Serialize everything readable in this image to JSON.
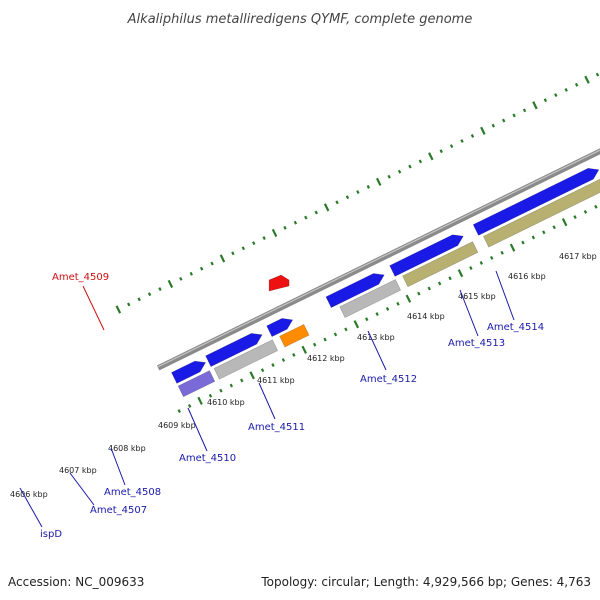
{
  "title": "Alkaliphilus metalliredigens QYMF, complete genome",
  "footer": {
    "accession": "Accession: NC_009633",
    "topology": "Topology: circular; Length: 4,929,566 bp; Genes: 4,763"
  },
  "colors": {
    "backbone": "#8a8a8a",
    "ticks": "#2a7a2a",
    "label_default": "#1a1aaa",
    "label_highlight": "#cc1111",
    "gene_blue": "#1a1ae6",
    "gene_khaki": "#b8b070",
    "gene_gray": "#b8b8b8",
    "gene_orange": "#ff8c00",
    "gene_purple": "#7a6ad8",
    "gene_steelblue": "#4a80b8",
    "gene_darkgray": "#666666",
    "gene_pink": "#e88a8a",
    "gene_red": "#ee1111"
  },
  "tick_labels": [
    "4606 kbp",
    "4607 kbp",
    "4608 kbp",
    "4609 kbp",
    "4610 kbp",
    "4611 kbp",
    "4612 kbp",
    "4613 kbp",
    "4614 kbp",
    "4615 kbp",
    "4616 kbp",
    "4617 kbp"
  ],
  "gene_labels": [
    "ispD",
    "Amet_4507",
    "Amet_4508",
    "Amet_4509",
    "Amet_4510",
    "Amet_4511",
    "Amet_4512",
    "Amet_4513",
    "Amet_4514"
  ]
}
